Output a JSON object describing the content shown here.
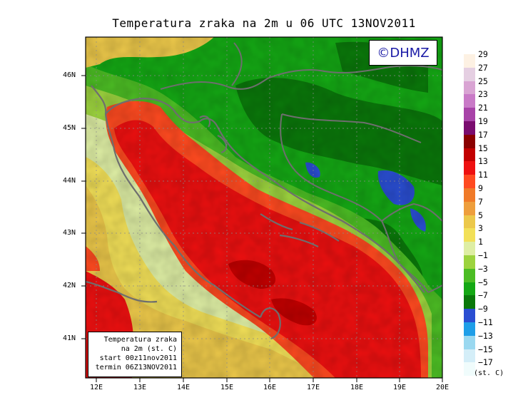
{
  "title": "Temperatura zraka na 2m u 06 UTC 13NOV2011",
  "logo": "©DHMZ",
  "infobox": {
    "line1": "Temperatura zraka",
    "line2": "na 2m (st. C)",
    "line3": "start 00z11nov2011",
    "line4": "termin 06Z13NOV2011"
  },
  "axes": {
    "lat_labels": [
      "46N",
      "45N",
      "44N",
      "43N",
      "42N",
      "41N"
    ],
    "lon_labels": [
      "12E",
      "13E",
      "14E",
      "15E",
      "16E",
      "17E",
      "18E",
      "19E",
      "20E"
    ]
  },
  "legend": {
    "labels": [
      "29",
      "27",
      "25",
      "23",
      "21",
      "19",
      "17",
      "15",
      "13",
      "11",
      "9",
      "7",
      "5",
      "3",
      "1",
      "−1",
      "−3",
      "−5",
      "−7",
      "−9",
      "−11",
      "−13",
      "−15",
      "−17"
    ],
    "colors": [
      "#fdf1e3",
      "#e5cfe2",
      "#d9a4d3",
      "#c97ac7",
      "#a843a8",
      "#7a0c6f",
      "#8a0000",
      "#c20000",
      "#ee1010",
      "#ff4a20",
      "#f07a28",
      "#ee9e3c",
      "#ecc84a",
      "#f2e058",
      "#deeea4",
      "#9cd33e",
      "#4cbd24",
      "#14a814",
      "#0a780a",
      "#2a4ed2",
      "#1e9ee8",
      "#9ad8f0",
      "#d4eef8",
      "#f0fcfc"
    ],
    "units": "(st. C)"
  }
}
